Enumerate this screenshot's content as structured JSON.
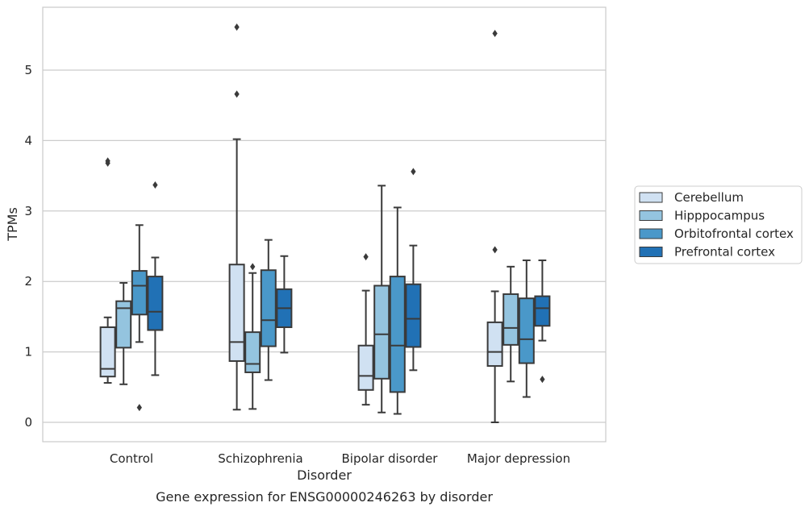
{
  "chart_data": {
    "type": "box",
    "title": "",
    "caption": "Gene expression for ENSG00000246263 by disorder",
    "xlabel": "Disorder",
    "ylabel": "TPMs",
    "ylim": [
      -0.27,
      5.9
    ],
    "yticks": [
      0,
      1,
      2,
      3,
      4,
      5
    ],
    "grid": "horizontal",
    "legend_position": "right",
    "categories": [
      "Control",
      "Schizophrenia",
      "Bipolar disorder",
      "Major depression"
    ],
    "series": [
      {
        "name": "Cerebellum",
        "color": "#d0e1f2",
        "boxes": [
          {
            "whisker_low": 0.56,
            "q1": 0.65,
            "median": 0.76,
            "q3": 1.35,
            "whisker_high": 1.49,
            "outliers": [
              3.68,
              3.71
            ]
          },
          {
            "whisker_low": 0.18,
            "q1": 0.87,
            "median": 1.14,
            "q3": 2.24,
            "whisker_high": 4.02,
            "outliers": [
              4.66,
              5.61
            ]
          },
          {
            "whisker_low": 0.25,
            "q1": 0.46,
            "median": 0.66,
            "q3": 1.09,
            "whisker_high": 1.87,
            "outliers": [
              2.35
            ]
          },
          {
            "whisker_low": 0.0,
            "q1": 0.8,
            "median": 1.0,
            "q3": 1.42,
            "whisker_high": 1.86,
            "outliers": [
              2.45,
              5.52
            ]
          }
        ]
      },
      {
        "name": "Hipppocampus",
        "color": "#94c4df",
        "boxes": [
          {
            "whisker_low": 0.54,
            "q1": 1.06,
            "median": 1.62,
            "q3": 1.72,
            "whisker_high": 1.98,
            "outliers": []
          },
          {
            "whisker_low": 0.19,
            "q1": 0.71,
            "median": 0.83,
            "q3": 1.28,
            "whisker_high": 2.12,
            "outliers": [
              2.21
            ]
          },
          {
            "whisker_low": 0.14,
            "q1": 0.62,
            "median": 1.25,
            "q3": 1.94,
            "whisker_high": 3.36,
            "outliers": []
          },
          {
            "whisker_low": 0.58,
            "q1": 1.1,
            "median": 1.34,
            "q3": 1.82,
            "whisker_high": 2.21,
            "outliers": []
          }
        ]
      },
      {
        "name": "Orbitofrontal cortex",
        "color": "#4a98c9",
        "boxes": [
          {
            "whisker_low": 1.14,
            "q1": 1.53,
            "median": 1.94,
            "q3": 2.15,
            "whisker_high": 2.8,
            "outliers": [
              0.21
            ]
          },
          {
            "whisker_low": 0.6,
            "q1": 1.08,
            "median": 1.45,
            "q3": 2.16,
            "whisker_high": 2.59,
            "outliers": []
          },
          {
            "whisker_low": 0.12,
            "q1": 0.43,
            "median": 1.09,
            "q3": 2.07,
            "whisker_high": 3.05,
            "outliers": []
          },
          {
            "whisker_low": 0.36,
            "q1": 0.84,
            "median": 1.18,
            "q3": 1.76,
            "whisker_high": 2.3,
            "outliers": []
          }
        ]
      },
      {
        "name": "Prefrontal cortex",
        "color": "#2171b5",
        "boxes": [
          {
            "whisker_low": 0.67,
            "q1": 1.31,
            "median": 1.57,
            "q3": 2.07,
            "whisker_high": 2.34,
            "outliers": [
              3.37
            ]
          },
          {
            "whisker_low": 0.99,
            "q1": 1.35,
            "median": 1.62,
            "q3": 1.89,
            "whisker_high": 2.36,
            "outliers": []
          },
          {
            "whisker_low": 0.74,
            "q1": 1.07,
            "median": 1.47,
            "q3": 1.96,
            "whisker_high": 2.51,
            "outliers": [
              3.56
            ]
          },
          {
            "whisker_low": 1.16,
            "q1": 1.37,
            "median": 1.62,
            "q3": 1.79,
            "whisker_high": 2.3,
            "outliers": [
              0.61
            ]
          }
        ]
      }
    ]
  }
}
